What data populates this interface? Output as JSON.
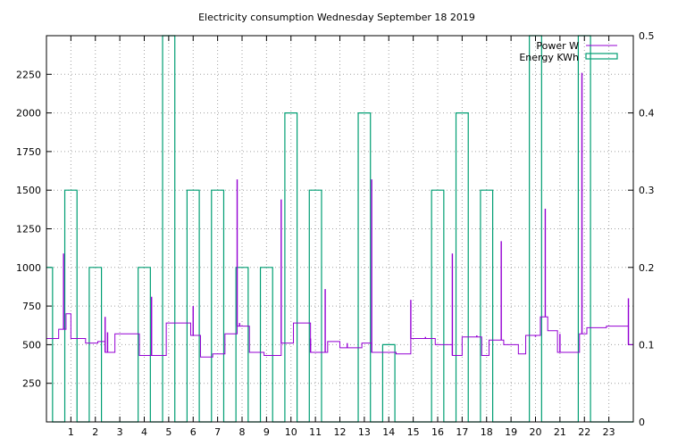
{
  "chart_data": {
    "type": "line",
    "title": "Electricity consumption Wednesday September 18 2019",
    "x_ticks": [
      "1",
      "2",
      "3",
      "4",
      "5",
      "6",
      "7",
      "8",
      "9",
      "10",
      "11",
      "12",
      "13",
      "14",
      "15",
      "16",
      "17",
      "18",
      "19",
      "20",
      "21",
      "22",
      "23"
    ],
    "xlim": [
      0,
      24
    ],
    "y_left": {
      "ticks": [
        "250",
        "500",
        "750",
        "1000",
        "1250",
        "1500",
        "1750",
        "2000",
        "2250"
      ],
      "ylim": [
        0,
        2500
      ]
    },
    "y_right": {
      "ticks": [
        "0",
        "0.1",
        "0.2",
        "0.3",
        "0.4",
        "0.5"
      ],
      "ylim": [
        0,
        0.5
      ]
    },
    "grid": true,
    "legend_position": "top-right",
    "colors": {
      "power": "#9400d3",
      "energy": "#009e73"
    },
    "series": [
      {
        "name": "Power W",
        "axis": "left",
        "style": "steps",
        "points": [
          [
            0.0,
            540
          ],
          [
            0.5,
            600
          ],
          [
            0.8,
            700
          ],
          [
            1.0,
            540
          ],
          [
            1.6,
            510
          ],
          [
            2.1,
            520
          ],
          [
            2.4,
            450
          ],
          [
            2.8,
            570
          ],
          [
            3.8,
            430
          ],
          [
            4.4,
            430
          ],
          [
            4.9,
            640
          ],
          [
            5.9,
            560
          ],
          [
            6.3,
            420
          ],
          [
            6.8,
            440
          ],
          [
            7.3,
            570
          ],
          [
            7.8,
            620
          ],
          [
            8.3,
            450
          ],
          [
            8.9,
            430
          ],
          [
            9.6,
            510
          ],
          [
            10.1,
            640
          ],
          [
            10.8,
            450
          ],
          [
            11.5,
            520
          ],
          [
            12.0,
            480
          ],
          [
            12.9,
            510
          ],
          [
            13.3,
            450
          ],
          [
            14.3,
            440
          ],
          [
            14.9,
            540
          ],
          [
            15.9,
            500
          ],
          [
            16.6,
            430
          ],
          [
            17.0,
            550
          ],
          [
            17.8,
            430
          ],
          [
            18.1,
            530
          ],
          [
            18.7,
            500
          ],
          [
            19.3,
            440
          ],
          [
            19.6,
            560
          ],
          [
            20.2,
            680
          ],
          [
            20.5,
            590
          ],
          [
            20.9,
            450
          ],
          [
            21.8,
            570
          ],
          [
            22.1,
            610
          ],
          [
            22.9,
            620
          ],
          [
            23.8,
            500
          ],
          [
            24.0,
            500
          ]
        ],
        "spikes": [
          [
            0.7,
            1090
          ],
          [
            2.4,
            680
          ],
          [
            2.5,
            580
          ],
          [
            4.3,
            810
          ],
          [
            5.0,
            640
          ],
          [
            6.0,
            750
          ],
          [
            7.8,
            1570
          ],
          [
            7.9,
            640
          ],
          [
            9.6,
            1440
          ],
          [
            10.3,
            640
          ],
          [
            10.8,
            540
          ],
          [
            11.4,
            860
          ],
          [
            12.3,
            510
          ],
          [
            13.3,
            1570
          ],
          [
            14.0,
            450
          ],
          [
            14.9,
            790
          ],
          [
            15.5,
            550
          ],
          [
            16.6,
            1090
          ],
          [
            17.6,
            560
          ],
          [
            18.6,
            1170
          ],
          [
            20.0,
            550
          ],
          [
            20.4,
            1380
          ],
          [
            21.0,
            570
          ],
          [
            21.9,
            2260
          ],
          [
            23.8,
            800
          ]
        ]
      },
      {
        "name": "Energy KWh",
        "axis": "right",
        "style": "fsteps",
        "points": [
          [
            0.0,
            0.2
          ],
          [
            0.25,
            0.0
          ],
          [
            0.75,
            0.3
          ],
          [
            1.25,
            0.0
          ],
          [
            1.75,
            0.2
          ],
          [
            2.25,
            0.0
          ],
          [
            3.75,
            0.2
          ],
          [
            4.25,
            0.0
          ],
          [
            4.75,
            0.5
          ],
          [
            5.25,
            0.0
          ],
          [
            5.75,
            0.3
          ],
          [
            6.25,
            0.0
          ],
          [
            6.75,
            0.3
          ],
          [
            7.25,
            0.0
          ],
          [
            7.75,
            0.2
          ],
          [
            8.25,
            0.0
          ],
          [
            8.75,
            0.2
          ],
          [
            9.25,
            0.0
          ],
          [
            9.75,
            0.4
          ],
          [
            10.25,
            0.0
          ],
          [
            10.75,
            0.3
          ],
          [
            11.25,
            0.0
          ],
          [
            12.75,
            0.4
          ],
          [
            13.25,
            0.0
          ],
          [
            13.75,
            0.1
          ],
          [
            14.25,
            0.0
          ],
          [
            15.75,
            0.3
          ],
          [
            16.25,
            0.0
          ],
          [
            16.75,
            0.4
          ],
          [
            17.25,
            0.0
          ],
          [
            17.75,
            0.3
          ],
          [
            18.25,
            0.0
          ],
          [
            19.75,
            0.5
          ],
          [
            20.25,
            0.0
          ],
          [
            21.75,
            0.5
          ],
          [
            22.25,
            0.0
          ]
        ]
      }
    ]
  }
}
